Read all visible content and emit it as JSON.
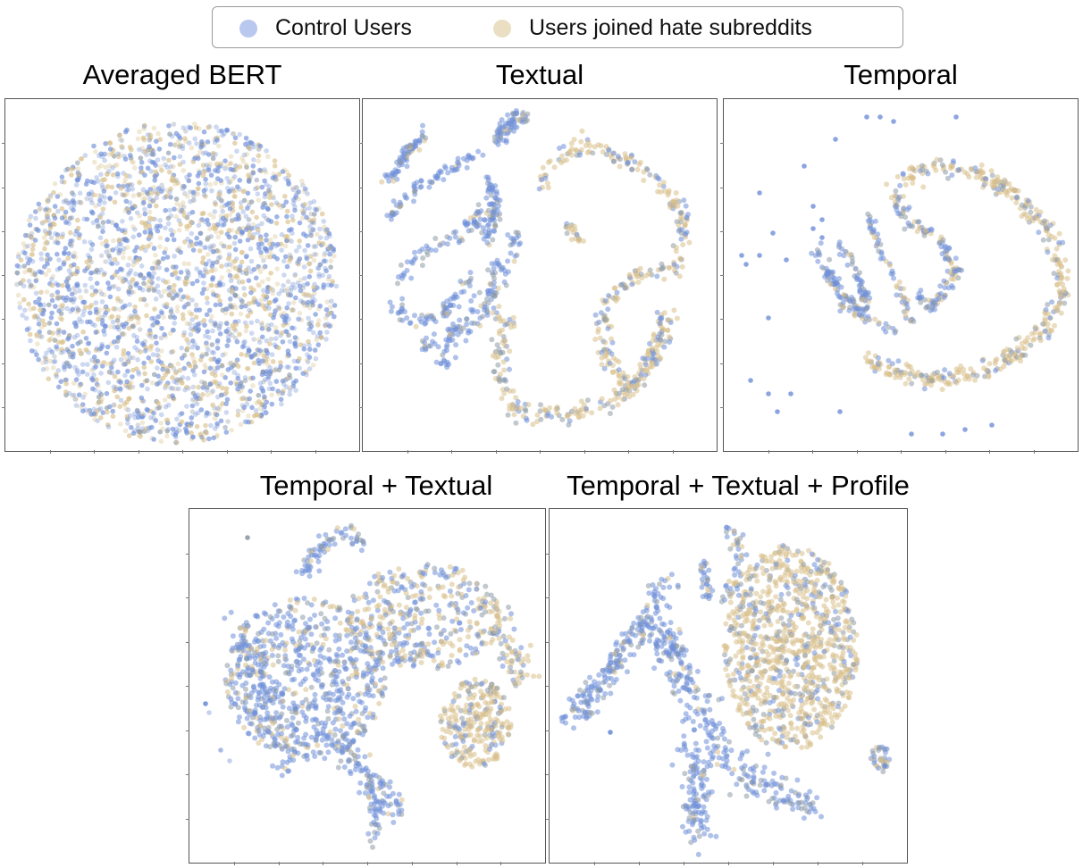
{
  "legend": {
    "items": [
      {
        "label": "Control Users",
        "color": "#7c9bdb"
      },
      {
        "label": "Users joined hate subreddits",
        "color": "#d9c48f"
      }
    ],
    "placement": "top-center"
  },
  "colors": {
    "control": "#6f8fd8",
    "hate": "#d8c08a",
    "mixed": "#8e9aa6"
  },
  "chart_data": [
    {
      "type": "scatter",
      "title": "Averaged BERT",
      "series": [
        {
          "name": "Control Users"
        },
        {
          "name": "Users joined hate subreddits"
        }
      ],
      "grid": false,
      "tick_labels": false
    },
    {
      "type": "scatter",
      "title": "Textual",
      "series": [
        {
          "name": "Control Users"
        },
        {
          "name": "Users joined hate subreddits"
        }
      ],
      "grid": false,
      "tick_labels": false
    },
    {
      "type": "scatter",
      "title": "Temporal",
      "series": [
        {
          "name": "Control Users"
        },
        {
          "name": "Users joined hate subreddits"
        }
      ],
      "grid": false,
      "tick_labels": false
    },
    {
      "type": "scatter",
      "title": "Temporal + Textual",
      "series": [
        {
          "name": "Control Users"
        },
        {
          "name": "Users joined hate subreddits"
        }
      ],
      "grid": false,
      "tick_labels": false
    },
    {
      "type": "scatter",
      "title": "Temporal + Textual + Profile",
      "series": [
        {
          "name": "Control Users"
        },
        {
          "name": "Users joined hate subreddits"
        }
      ],
      "grid": false,
      "tick_labels": false
    }
  ]
}
